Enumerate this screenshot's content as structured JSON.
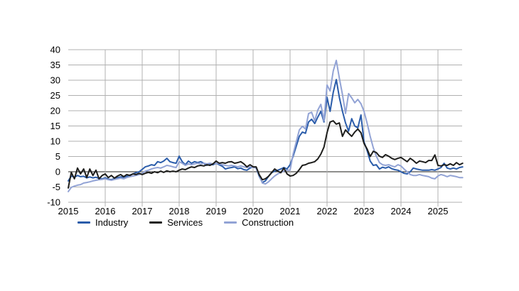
{
  "page": {
    "background": "#ffffff"
  },
  "chart_data": {
    "type": "line",
    "title": "",
    "x_unit": "monthly",
    "x_range": [
      "2015-01",
      "2025-09"
    ],
    "x_tick_labels": [
      "2015",
      "2016",
      "2017",
      "2018",
      "2019",
      "2020",
      "2021",
      "2022",
      "2023",
      "2024",
      "2025"
    ],
    "y_ticks": [
      40,
      35,
      30,
      25,
      20,
      15,
      10,
      5,
      0,
      -5,
      -10
    ],
    "ylim": [
      -10,
      40
    ],
    "grid": true,
    "zero_line": true,
    "legend_position": "bottom-left",
    "colors": {
      "grid": "#b0b0b0",
      "zero_line": "#1d1d1b",
      "axis_text": "#000000",
      "industry": "#2a5caa",
      "services": "#1d1d1b",
      "construction": "#92a3d5"
    },
    "series": [
      {
        "name": "Industry",
        "color": "#2a5caa",
        "values": [
          -3.0,
          -1.4,
          -1.8,
          -1.2,
          -1.6,
          -1.5,
          -2.0,
          -1.7,
          -2.0,
          -1.8,
          -2.2,
          -2.3,
          -2.0,
          -2.4,
          -2.6,
          -2.2,
          -1.9,
          -1.7,
          -1.8,
          -1.5,
          -1.1,
          -0.7,
          -0.3,
          0.0,
          0.8,
          1.6,
          1.9,
          2.3,
          2.1,
          3.3,
          3.0,
          3.5,
          4.4,
          3.3,
          3.0,
          2.8,
          5.1,
          3.3,
          2.3,
          3.5,
          2.8,
          3.3,
          3.0,
          3.3,
          2.8,
          2.1,
          2.5,
          2.3,
          2.8,
          2.3,
          1.8,
          0.9,
          1.2,
          1.4,
          1.6,
          1.0,
          1.2,
          0.7,
          0.5,
          1.2,
          1.6,
          1.2,
          -1.5,
          -3.5,
          -3.0,
          -1.5,
          -0.3,
          0.2,
          0.5,
          0.9,
          1.4,
          0.9,
          2.3,
          5.1,
          8.4,
          11.6,
          13.0,
          12.6,
          16.3,
          17.2,
          15.8,
          17.9,
          19.8,
          16.3,
          24.4,
          19.8,
          26.0,
          30.2,
          24.4,
          19.8,
          16.0,
          13.3,
          17.4,
          15.0,
          14.4,
          18.6,
          9.8,
          7.0,
          3.5,
          2.1,
          2.3,
          0.9,
          1.5,
          1.2,
          1.6,
          1.0,
          0.7,
          0.5,
          0.0,
          -0.5,
          -0.7,
          0.0,
          1.2,
          0.9,
          0.7,
          0.5,
          0.5,
          0.5,
          0.7,
          0.5,
          0.9,
          1.4,
          2.8,
          1.2,
          0.9,
          1.2,
          0.9,
          1.4,
          1.6
        ]
      },
      {
        "name": "Services",
        "color": "#1d1d1b",
        "values": [
          -5.3,
          -0.2,
          -2.3,
          1.2,
          -0.7,
          0.9,
          -1.9,
          0.9,
          -1.2,
          0.5,
          -2.3,
          -1.2,
          -0.7,
          -1.9,
          -1.2,
          -2.1,
          -1.4,
          -0.9,
          -1.6,
          -0.9,
          -1.2,
          -0.7,
          -0.9,
          -0.5,
          -0.9,
          -0.5,
          -0.2,
          -0.5,
          0.0,
          -0.3,
          0.2,
          -0.2,
          0.3,
          0.0,
          0.2,
          0.0,
          0.5,
          0.9,
          0.7,
          1.2,
          1.6,
          1.4,
          1.9,
          2.1,
          1.9,
          2.3,
          2.1,
          2.6,
          3.5,
          2.8,
          3.0,
          2.8,
          3.2,
          3.3,
          2.8,
          3.0,
          3.3,
          2.6,
          1.6,
          2.3,
          1.6,
          1.6,
          -1.0,
          -2.6,
          -2.3,
          -1.5,
          -0.3,
          0.9,
          0.2,
          -0.3,
          1.2,
          -0.7,
          -1.4,
          -1.2,
          -0.5,
          0.7,
          2.1,
          2.3,
          2.8,
          3.0,
          3.3,
          4.2,
          5.8,
          8.1,
          12.8,
          16.3,
          16.7,
          15.6,
          16.0,
          11.6,
          13.7,
          12.6,
          11.6,
          13.0,
          14.0,
          12.8,
          9.3,
          7.5,
          5.0,
          6.7,
          6.3,
          5.1,
          4.7,
          5.6,
          5.1,
          4.4,
          4.0,
          4.4,
          4.7,
          4.0,
          3.3,
          4.4,
          3.7,
          2.8,
          3.5,
          3.3,
          3.0,
          3.7,
          3.7,
          5.5,
          2.1,
          1.9,
          2.3,
          2.1,
          2.6,
          2.1,
          3.0,
          2.3,
          2.8
        ]
      },
      {
        "name": "Construction",
        "color": "#92a3d5",
        "values": [
          -6.5,
          -5.1,
          -4.7,
          -4.4,
          -4.2,
          -3.7,
          -3.5,
          -3.3,
          -3.0,
          -2.8,
          -2.6,
          -2.5,
          -2.3,
          -2.6,
          -2.8,
          -2.5,
          -2.3,
          -2.1,
          -2.3,
          -1.9,
          -1.6,
          -1.4,
          -1.2,
          -0.9,
          -0.5,
          0.2,
          0.5,
          0.9,
          1.2,
          1.4,
          1.2,
          1.6,
          2.1,
          1.9,
          1.6,
          1.4,
          3.3,
          2.8,
          2.1,
          2.6,
          2.3,
          2.6,
          2.8,
          2.6,
          2.8,
          2.6,
          2.8,
          2.6,
          2.8,
          2.6,
          2.3,
          2.1,
          1.9,
          2.1,
          1.9,
          1.6,
          1.9,
          1.6,
          1.4,
          1.6,
          1.5,
          1.2,
          -1.0,
          -3.7,
          -4.0,
          -3.3,
          -2.3,
          -1.4,
          -0.7,
          -0.2,
          0.2,
          0.5,
          0.5,
          5.8,
          9.8,
          13.7,
          14.9,
          14.0,
          19.1,
          19.5,
          16.7,
          20.2,
          22.1,
          16.7,
          28.4,
          26.5,
          33.0,
          36.5,
          30.7,
          25.3,
          19.1,
          25.6,
          24.2,
          22.6,
          23.7,
          22.3,
          19.8,
          16.0,
          11.6,
          7.9,
          5.1,
          3.0,
          2.3,
          2.1,
          2.3,
          1.9,
          1.6,
          2.3,
          1.9,
          0.9,
          0.0,
          -0.9,
          -1.2,
          -1.2,
          -0.9,
          -1.2,
          -1.4,
          -1.6,
          -2.1,
          -2.3,
          -1.4,
          -0.9,
          -1.2,
          -1.6,
          -1.2,
          -1.4,
          -1.6,
          -1.9,
          -1.9
        ]
      }
    ]
  },
  "legend": {
    "items": [
      {
        "label": "Industry"
      },
      {
        "label": "Services"
      },
      {
        "label": "Construction"
      }
    ]
  }
}
